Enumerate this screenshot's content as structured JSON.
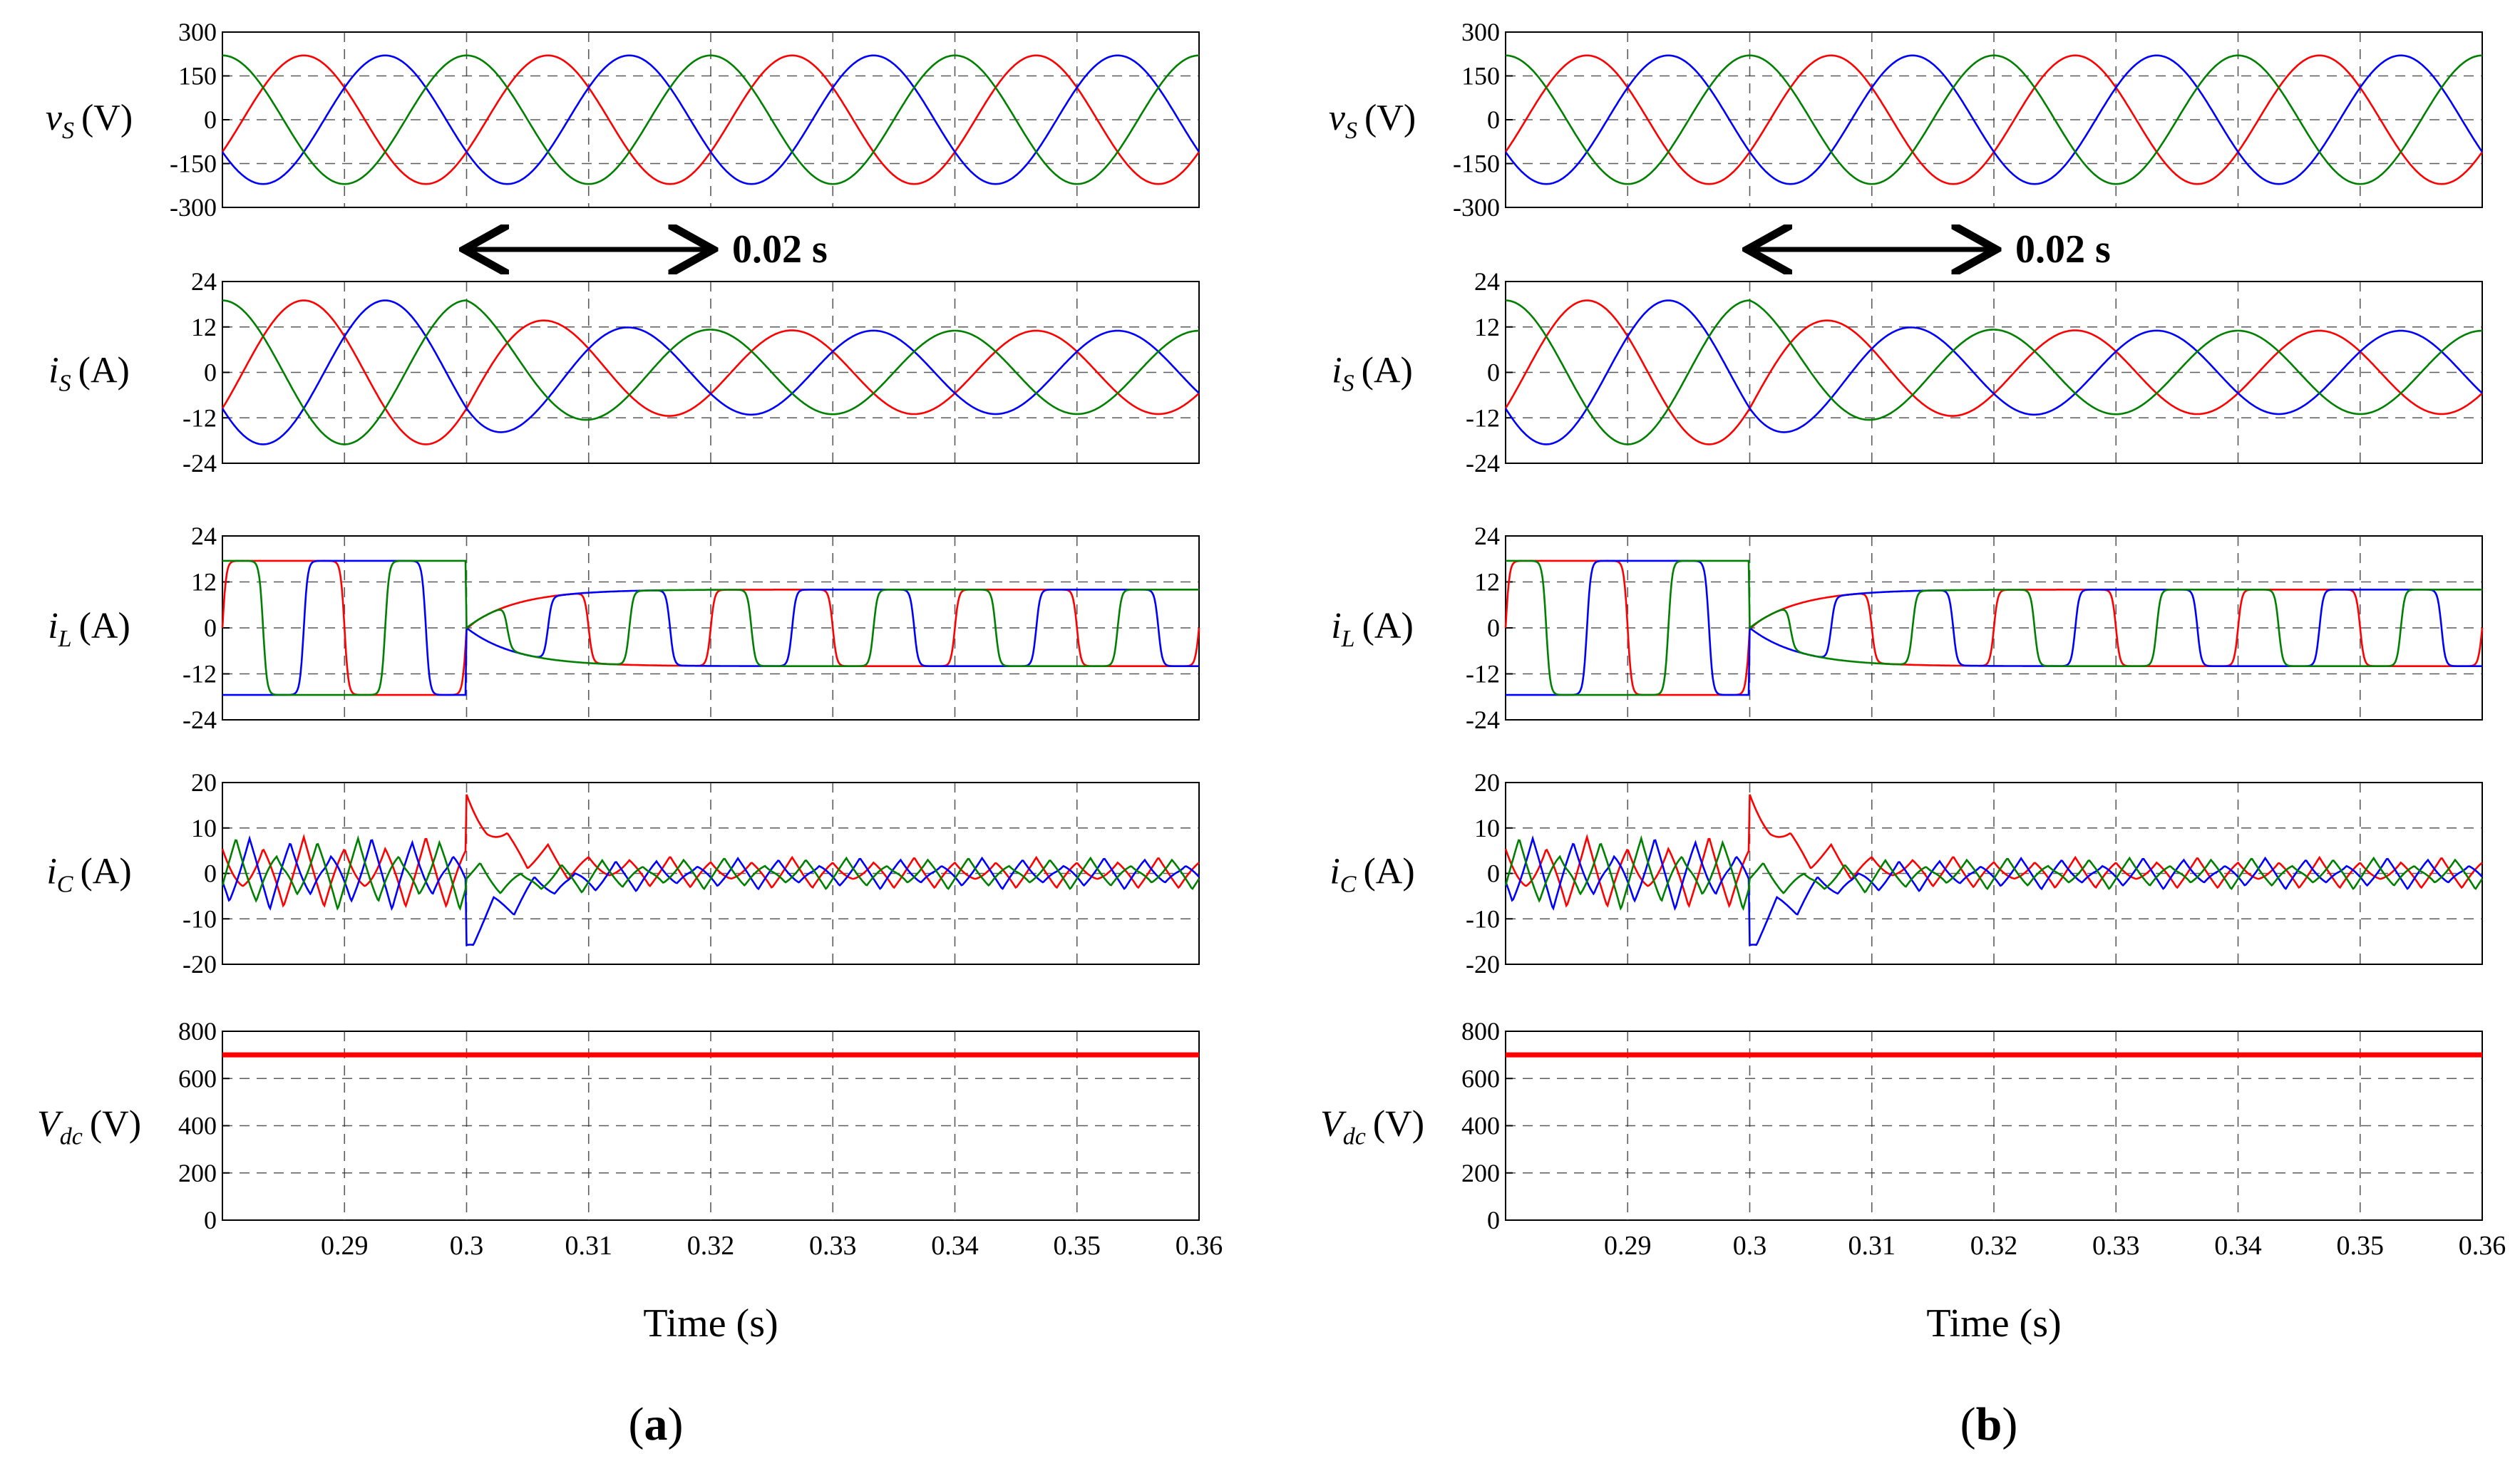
{
  "chart_data": {
    "type": "line",
    "description": "Three-phase simulation waveforms: source voltage, source current, load current, compensator current and DC-link voltage",
    "time_axis": {
      "label": "Time (s)",
      "range": [
        0.28,
        0.36
      ],
      "ticks": [
        "0.29",
        "0.3",
        "0.31",
        "0.32",
        "0.33",
        "0.34",
        "0.35",
        "0.36"
      ],
      "tick_values": [
        0.29,
        0.3,
        0.31,
        0.32,
        0.33,
        0.34,
        0.35,
        0.36
      ]
    },
    "fundamental_frequency_hz": 50,
    "disturbance_time_s": 0.3,
    "period_annotation": {
      "label": "0.02 s",
      "from": 0.3,
      "to": 0.32
    },
    "phase_colors": {
      "a": "#ff0000",
      "b": "#0000ff",
      "c": "#008000"
    },
    "subplot_labels": {
      "vs": "v",
      "vs_sub": "S",
      "vs_unit": "(V)",
      "is": "i",
      "is_sub": "S",
      "is_unit": "(A)",
      "il": "i",
      "il_sub": "L",
      "il_unit": "(A)",
      "ic": "i",
      "ic_sub": "C",
      "ic_unit": "(A)",
      "vdc": "V",
      "vdc_sub": "dc",
      "vdc_unit": "(V)"
    },
    "subplots": [
      {
        "id": "vs",
        "ylim": [
          -300,
          300
        ],
        "yticks": [
          "300",
          "150",
          "0",
          "-150",
          "-300"
        ],
        "ytick_values": [
          300,
          150,
          0,
          -150,
          -300
        ],
        "amplitude_before": 220,
        "amplitude_after": 220
      },
      {
        "id": "is",
        "ylim": [
          -24,
          24
        ],
        "yticks": [
          "24",
          "12",
          "0",
          "-12",
          "-24"
        ],
        "ytick_values": [
          24,
          12,
          0,
          -12,
          -24
        ],
        "amplitude_before": 19,
        "amplitude_after": 11
      },
      {
        "id": "il",
        "ylim": [
          -24,
          24
        ],
        "yticks": [
          "24",
          "12",
          "0",
          "-12",
          "-24"
        ],
        "ytick_values": [
          24,
          12,
          0,
          -12,
          -24
        ],
        "level_before": 17.5,
        "level_after": 10
      },
      {
        "id": "ic",
        "ylim": [
          -20,
          20
        ],
        "yticks": [
          "20",
          "10",
          "0",
          "-10",
          "-20"
        ],
        "ytick_values": [
          20,
          10,
          0,
          -10,
          -20
        ],
        "ripple_before": 8,
        "ripple_after": 3.5,
        "transient_peak": 15
      },
      {
        "id": "vdc",
        "ylim": [
          0,
          800
        ],
        "yticks": [
          "800",
          "600",
          "400",
          "200",
          "0"
        ],
        "ytick_values": [
          800,
          600,
          400,
          200,
          0
        ],
        "value": 700
      }
    ],
    "panels": [
      {
        "id": "a",
        "label_open": "(",
        "label_letter": "a",
        "label_close": ")"
      },
      {
        "id": "b",
        "label_open": "(",
        "label_letter": "b",
        "label_close": ")"
      }
    ]
  }
}
